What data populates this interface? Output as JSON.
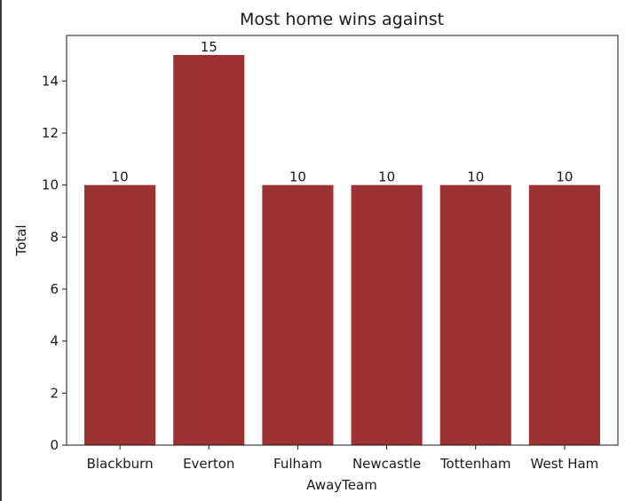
{
  "chart_data": {
    "type": "bar",
    "title": "Most home wins against",
    "xlabel": "AwayTeam",
    "ylabel": "Total",
    "categories": [
      "Blackburn",
      "Everton",
      "Fulham",
      "Newcastle",
      "Tottenham",
      "West Ham"
    ],
    "values": [
      10,
      15,
      10,
      10,
      10,
      10
    ],
    "data_labels": [
      "10",
      "15",
      "10",
      "10",
      "10",
      "10"
    ],
    "ylim": [
      0,
      15.75
    ],
    "yticks": [
      0,
      2,
      4,
      6,
      8,
      10,
      12,
      14
    ],
    "grid": false,
    "legend": "none",
    "bar_color": "#9d3232"
  }
}
